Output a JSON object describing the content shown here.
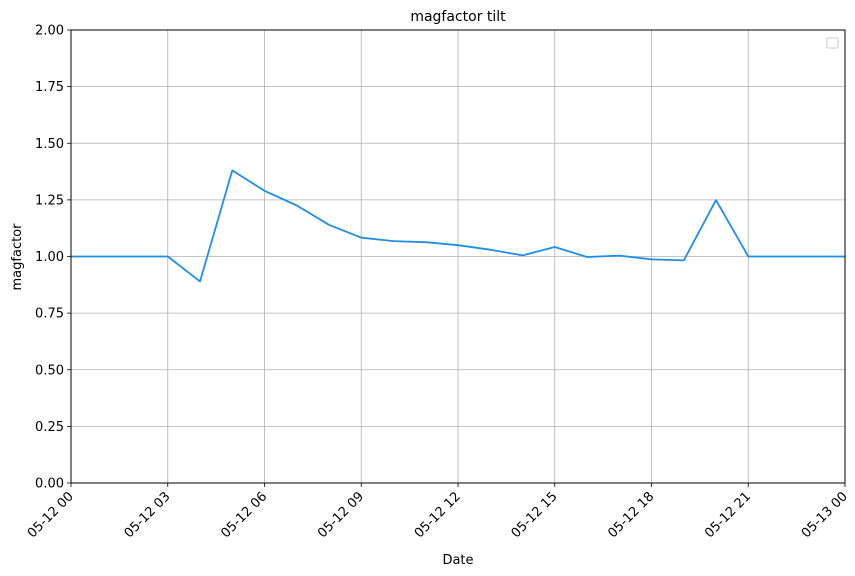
{
  "chart_data": {
    "type": "line",
    "title": "magfactor tilt",
    "xlabel": "Date",
    "ylabel": "magfactor",
    "ylim": [
      0,
      2
    ],
    "yticks": [
      0.0,
      0.25,
      0.5,
      0.75,
      1.0,
      1.25,
      1.5,
      1.75,
      2.0
    ],
    "ytick_labels": [
      "0.00",
      "0.25",
      "0.50",
      "0.75",
      "1.00",
      "1.25",
      "1.50",
      "1.75",
      "2.00"
    ],
    "xlim": [
      "2024-05-12 00:00",
      "2024-05-13 00:00"
    ],
    "xticks": [
      "2024-05-12 00:00",
      "2024-05-12 03:00",
      "2024-05-12 06:00",
      "2024-05-12 09:00",
      "2024-05-12 12:00",
      "2024-05-12 15:00",
      "2024-05-12 18:00",
      "2024-05-12 21:00",
      "2024-05-13 00:00"
    ],
    "xtick_labels": [
      "05-12 00",
      "05-12 03",
      "05-12 06",
      "05-12 09",
      "05-12 12",
      "05-12 15",
      "05-12 18",
      "05-12 21",
      "05-13 00"
    ],
    "grid": true,
    "legend": "top-right",
    "series": [
      {
        "color": "#1f8ee8",
        "x": [
          "2024-05-12 00:00",
          "2024-05-12 01:00",
          "2024-05-12 02:00",
          "2024-05-12 03:00",
          "2024-05-12 04:00",
          "2024-05-12 05:00",
          "2024-05-12 06:00",
          "2024-05-12 07:00",
          "2024-05-12 08:00",
          "2024-05-12 09:00",
          "2024-05-12 10:00",
          "2024-05-12 11:00",
          "2024-05-12 12:00",
          "2024-05-12 13:00",
          "2024-05-12 14:00",
          "2024-05-12 15:00",
          "2024-05-12 16:00",
          "2024-05-12 17:00",
          "2024-05-12 18:00",
          "2024-05-12 19:00",
          "2024-05-12 20:00",
          "2024-05-12 21:00",
          "2024-05-12 22:00",
          "2024-05-12 23:00",
          "2024-05-13 00:00"
        ],
        "y": [
          1.0,
          1.0,
          1.0,
          1.0,
          0.89,
          1.38,
          1.29,
          1.225,
          1.14,
          1.083,
          1.068,
          1.063,
          1.05,
          1.03,
          1.005,
          1.042,
          0.998,
          1.004,
          0.987,
          0.983,
          1.249,
          1.0,
          1.0,
          1.0,
          1.0
        ]
      }
    ]
  }
}
